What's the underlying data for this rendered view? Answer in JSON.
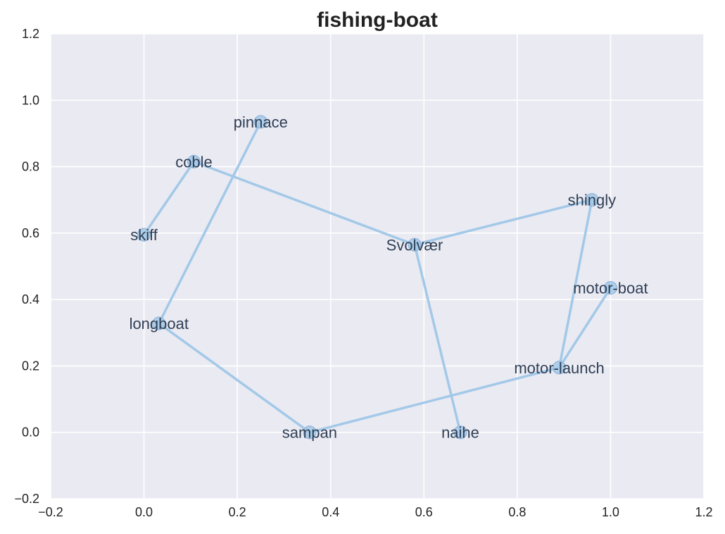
{
  "chart_data": {
    "type": "scatter",
    "title": "fishing-boat",
    "xlabel": "",
    "ylabel": "",
    "xlim": [
      -0.2,
      1.2
    ],
    "ylim": [
      -0.2,
      1.2
    ],
    "xticks": [
      "−0.2",
      "0.0",
      "0.2",
      "0.4",
      "0.6",
      "0.8",
      "1.0",
      "1.2"
    ],
    "yticks": [
      "−0.2",
      "0.0",
      "0.2",
      "0.4",
      "0.6",
      "0.8",
      "1.0",
      "1.2"
    ],
    "xtick_values": [
      -0.2,
      0.0,
      0.2,
      0.4,
      0.6,
      0.8,
      1.0,
      1.2
    ],
    "ytick_values": [
      -0.2,
      0.0,
      0.2,
      0.4,
      0.6,
      0.8,
      1.0,
      1.2
    ],
    "grid": true,
    "points": [
      {
        "label": "pinnace",
        "x": 0.25,
        "y": 0.935
      },
      {
        "label": "coble",
        "x": 0.107,
        "y": 0.815
      },
      {
        "label": "skiff",
        "x": 0.0,
        "y": 0.595
      },
      {
        "label": "Svolvær",
        "x": 0.58,
        "y": 0.565
      },
      {
        "label": "shingly",
        "x": 0.96,
        "y": 0.7
      },
      {
        "label": "motor-boat",
        "x": 1.0,
        "y": 0.435
      },
      {
        "label": "longboat",
        "x": 0.032,
        "y": 0.328
      },
      {
        "label": "motor-launch",
        "x": 0.89,
        "y": 0.195
      },
      {
        "label": "sampan",
        "x": 0.355,
        "y": 0.0
      },
      {
        "label": "naihe",
        "x": 0.678,
        "y": 0.0
      }
    ],
    "edges": [
      [
        "skiff",
        "coble"
      ],
      [
        "coble",
        "Svolvær"
      ],
      [
        "Svolvær",
        "shingly"
      ],
      [
        "Svolvær",
        "naihe"
      ],
      [
        "shingly",
        "motor-launch"
      ],
      [
        "motor-launch",
        "motor-boat"
      ],
      [
        "motor-launch",
        "sampan"
      ],
      [
        "sampan",
        "longboat"
      ],
      [
        "longboat",
        "pinnace"
      ]
    ],
    "colors": {
      "background": "#eaeaf2",
      "grid": "#ffffff",
      "line": "#a3c9e8",
      "marker": "#a3c9e8",
      "marker_edge": "#8fb4d9",
      "label": "#2f3f55"
    }
  }
}
